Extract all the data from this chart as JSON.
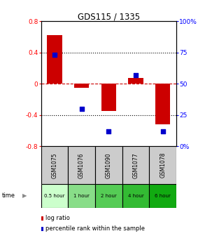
{
  "title": "GDS115 / 1335",
  "samples": [
    "GSM1075",
    "GSM1076",
    "GSM1090",
    "GSM1077",
    "GSM1078"
  ],
  "time_labels": [
    "0.5 hour",
    "1 hour",
    "2 hour",
    "4 hour",
    "6 hour"
  ],
  "time_colors": [
    "#ccffcc",
    "#88dd88",
    "#55cc55",
    "#33bb33",
    "#11aa11"
  ],
  "log_ratios": [
    0.62,
    -0.05,
    -0.35,
    0.07,
    -0.52
  ],
  "percentile_ranks": [
    73,
    30,
    12,
    57,
    12
  ],
  "bar_color": "#cc0000",
  "dot_color": "#0000cc",
  "ylim_left": [
    -0.8,
    0.8
  ],
  "ylim_right": [
    0,
    100
  ],
  "yticks_left": [
    -0.8,
    -0.4,
    0,
    0.4,
    0.8
  ],
  "yticks_right": [
    0,
    25,
    50,
    75,
    100
  ],
  "bar_width": 0.55,
  "dot_size": 18,
  "hline_color": "#cc0000",
  "sample_cell_color": "#cccccc",
  "legend_log_ratio": "log ratio",
  "legend_percentile": "percentile rank within the sample",
  "time_label": "time"
}
